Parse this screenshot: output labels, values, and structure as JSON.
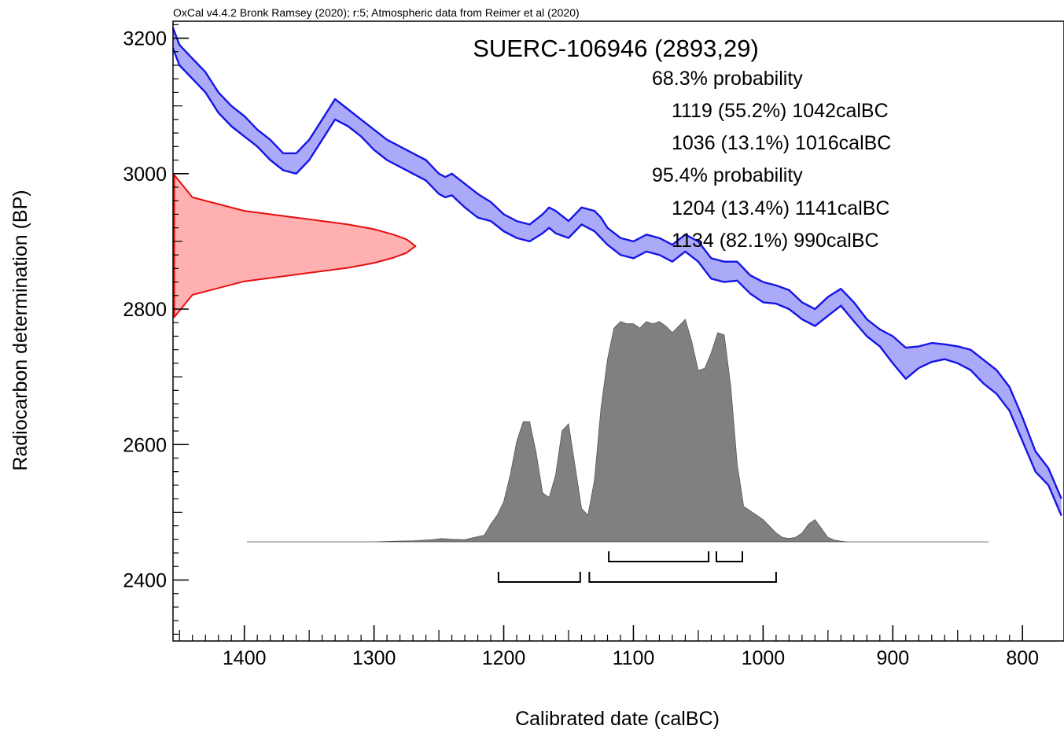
{
  "credit": "OxCal v4.4.2 Bronk Ramsey (2020); r:5; Atmospheric data from Reimer et al (2020)",
  "chart_data": {
    "type": "area",
    "title": "SUERC-106946 (2893,29)",
    "xlabel": "Calibrated date (calBC)",
    "ylabel": "Radiocarbon determination (BP)",
    "xlim": [
      1455,
      768
    ],
    "ylim": [
      2310,
      3225
    ],
    "x_reversed": true,
    "x_ticks": [
      1400,
      1300,
      1200,
      1100,
      1000,
      900,
      800
    ],
    "y_ticks": [
      2400,
      2600,
      2800,
      3000,
      3200
    ],
    "grid": false,
    "colors": {
      "curve": "#1515e6",
      "curve_fill": "#aaaaf8",
      "measurement": "#e60f0f",
      "measurement_fill": "#ffb0b0",
      "posterior": "#808080"
    },
    "measurement": {
      "mean_bp": 2893,
      "error": 29
    },
    "calibration_curve": {
      "name": "IntCal20",
      "x": [
        1455,
        1450,
        1440,
        1430,
        1420,
        1410,
        1400,
        1390,
        1380,
        1370,
        1360,
        1350,
        1340,
        1330,
        1320,
        1310,
        1300,
        1290,
        1280,
        1270,
        1260,
        1250,
        1245,
        1240,
        1230,
        1220,
        1210,
        1200,
        1190,
        1180,
        1170,
        1165,
        1160,
        1150,
        1145,
        1140,
        1130,
        1125,
        1120,
        1110,
        1100,
        1090,
        1080,
        1070,
        1060,
        1050,
        1040,
        1030,
        1020,
        1010,
        1000,
        990,
        980,
        970,
        960,
        950,
        940,
        930,
        920,
        910,
        900,
        890,
        880,
        870,
        860,
        850,
        840,
        830,
        820,
        810,
        800,
        790,
        780,
        770
      ],
      "upper": [
        3215,
        3190,
        3170,
        3150,
        3120,
        3100,
        3085,
        3065,
        3050,
        3030,
        3030,
        3050,
        3080,
        3110,
        3095,
        3080,
        3065,
        3050,
        3040,
        3030,
        3020,
        3000,
        2995,
        3000,
        2985,
        2970,
        2958,
        2940,
        2930,
        2925,
        2940,
        2950,
        2945,
        2930,
        2940,
        2950,
        2945,
        2935,
        2920,
        2905,
        2900,
        2910,
        2905,
        2895,
        2910,
        2900,
        2875,
        2870,
        2870,
        2850,
        2840,
        2835,
        2828,
        2810,
        2800,
        2818,
        2830,
        2810,
        2785,
        2770,
        2760,
        2743,
        2745,
        2750,
        2748,
        2745,
        2740,
        2725,
        2710,
        2685,
        2640,
        2590,
        2565,
        2520
      ],
      "lower": [
        3185,
        3160,
        3140,
        3120,
        3090,
        3070,
        3055,
        3040,
        3020,
        3005,
        3000,
        3020,
        3050,
        3080,
        3070,
        3055,
        3035,
        3020,
        3010,
        3000,
        2990,
        2970,
        2965,
        2968,
        2950,
        2935,
        2930,
        2915,
        2905,
        2900,
        2912,
        2920,
        2912,
        2905,
        2915,
        2925,
        2915,
        2905,
        2895,
        2880,
        2875,
        2885,
        2880,
        2870,
        2885,
        2870,
        2845,
        2840,
        2842,
        2823,
        2810,
        2808,
        2800,
        2785,
        2775,
        2790,
        2805,
        2782,
        2760,
        2745,
        2720,
        2697,
        2713,
        2722,
        2726,
        2720,
        2710,
        2690,
        2675,
        2650,
        2605,
        2560,
        2540,
        2495
      ]
    },
    "likelihood_curve": {
      "x": [
        1454,
        1440,
        1400,
        1360,
        1320,
        1300,
        1285,
        1275,
        1268
      ],
      "y": [
        2998,
        2965,
        2945,
        2935,
        2925,
        2918,
        2910,
        2903,
        2893
      ]
    },
    "posterior": {
      "x": [
        1398,
        1300,
        1270,
        1255,
        1248,
        1240,
        1230,
        1215,
        1210,
        1205,
        1200,
        1195,
        1190,
        1185,
        1180,
        1175,
        1170,
        1165,
        1160,
        1155,
        1150,
        1145,
        1140,
        1135,
        1130,
        1125,
        1120,
        1115,
        1110,
        1105,
        1100,
        1095,
        1090,
        1085,
        1080,
        1075,
        1070,
        1065,
        1060,
        1055,
        1050,
        1045,
        1040,
        1035,
        1030,
        1025,
        1020,
        1015,
        1010,
        1005,
        1000,
        995,
        990,
        985,
        980,
        975,
        970,
        965,
        960,
        955,
        950,
        945,
        940,
        935,
        930,
        920,
        900,
        880,
        826
      ],
      "p": [
        0,
        0,
        0.005,
        0.01,
        0.015,
        0.012,
        0.01,
        0.03,
        0.08,
        0.12,
        0.18,
        0.3,
        0.45,
        0.54,
        0.54,
        0.4,
        0.22,
        0.2,
        0.3,
        0.5,
        0.53,
        0.34,
        0.15,
        0.12,
        0.28,
        0.6,
        0.82,
        0.96,
        0.99,
        0.98,
        0.98,
        0.96,
        0.99,
        0.98,
        0.99,
        0.97,
        0.94,
        0.97,
        1.0,
        0.9,
        0.77,
        0.78,
        0.85,
        0.94,
        0.93,
        0.7,
        0.35,
        0.16,
        0.14,
        0.12,
        0.1,
        0.07,
        0.04,
        0.02,
        0.015,
        0.02,
        0.04,
        0.08,
        0.1,
        0.06,
        0.02,
        0.008,
        0.003,
        0,
        0,
        0,
        0,
        0,
        0
      ]
    },
    "ranges_68": [
      [
        1119,
        1042
      ],
      [
        1036,
        1016
      ]
    ],
    "ranges_95": [
      [
        1204,
        1141
      ],
      [
        1134,
        990
      ]
    ],
    "annotations": {
      "p68_label": "68.3% probability",
      "p68_range1": "1119 (55.2%) 1042calBC",
      "p68_range2": "1036 (13.1%) 1016calBC",
      "p95_label": "95.4% probability",
      "p95_range1": "1204 (13.4%) 1141calBC",
      "p95_range2": "1134 (82.1%) 990calBC"
    }
  }
}
